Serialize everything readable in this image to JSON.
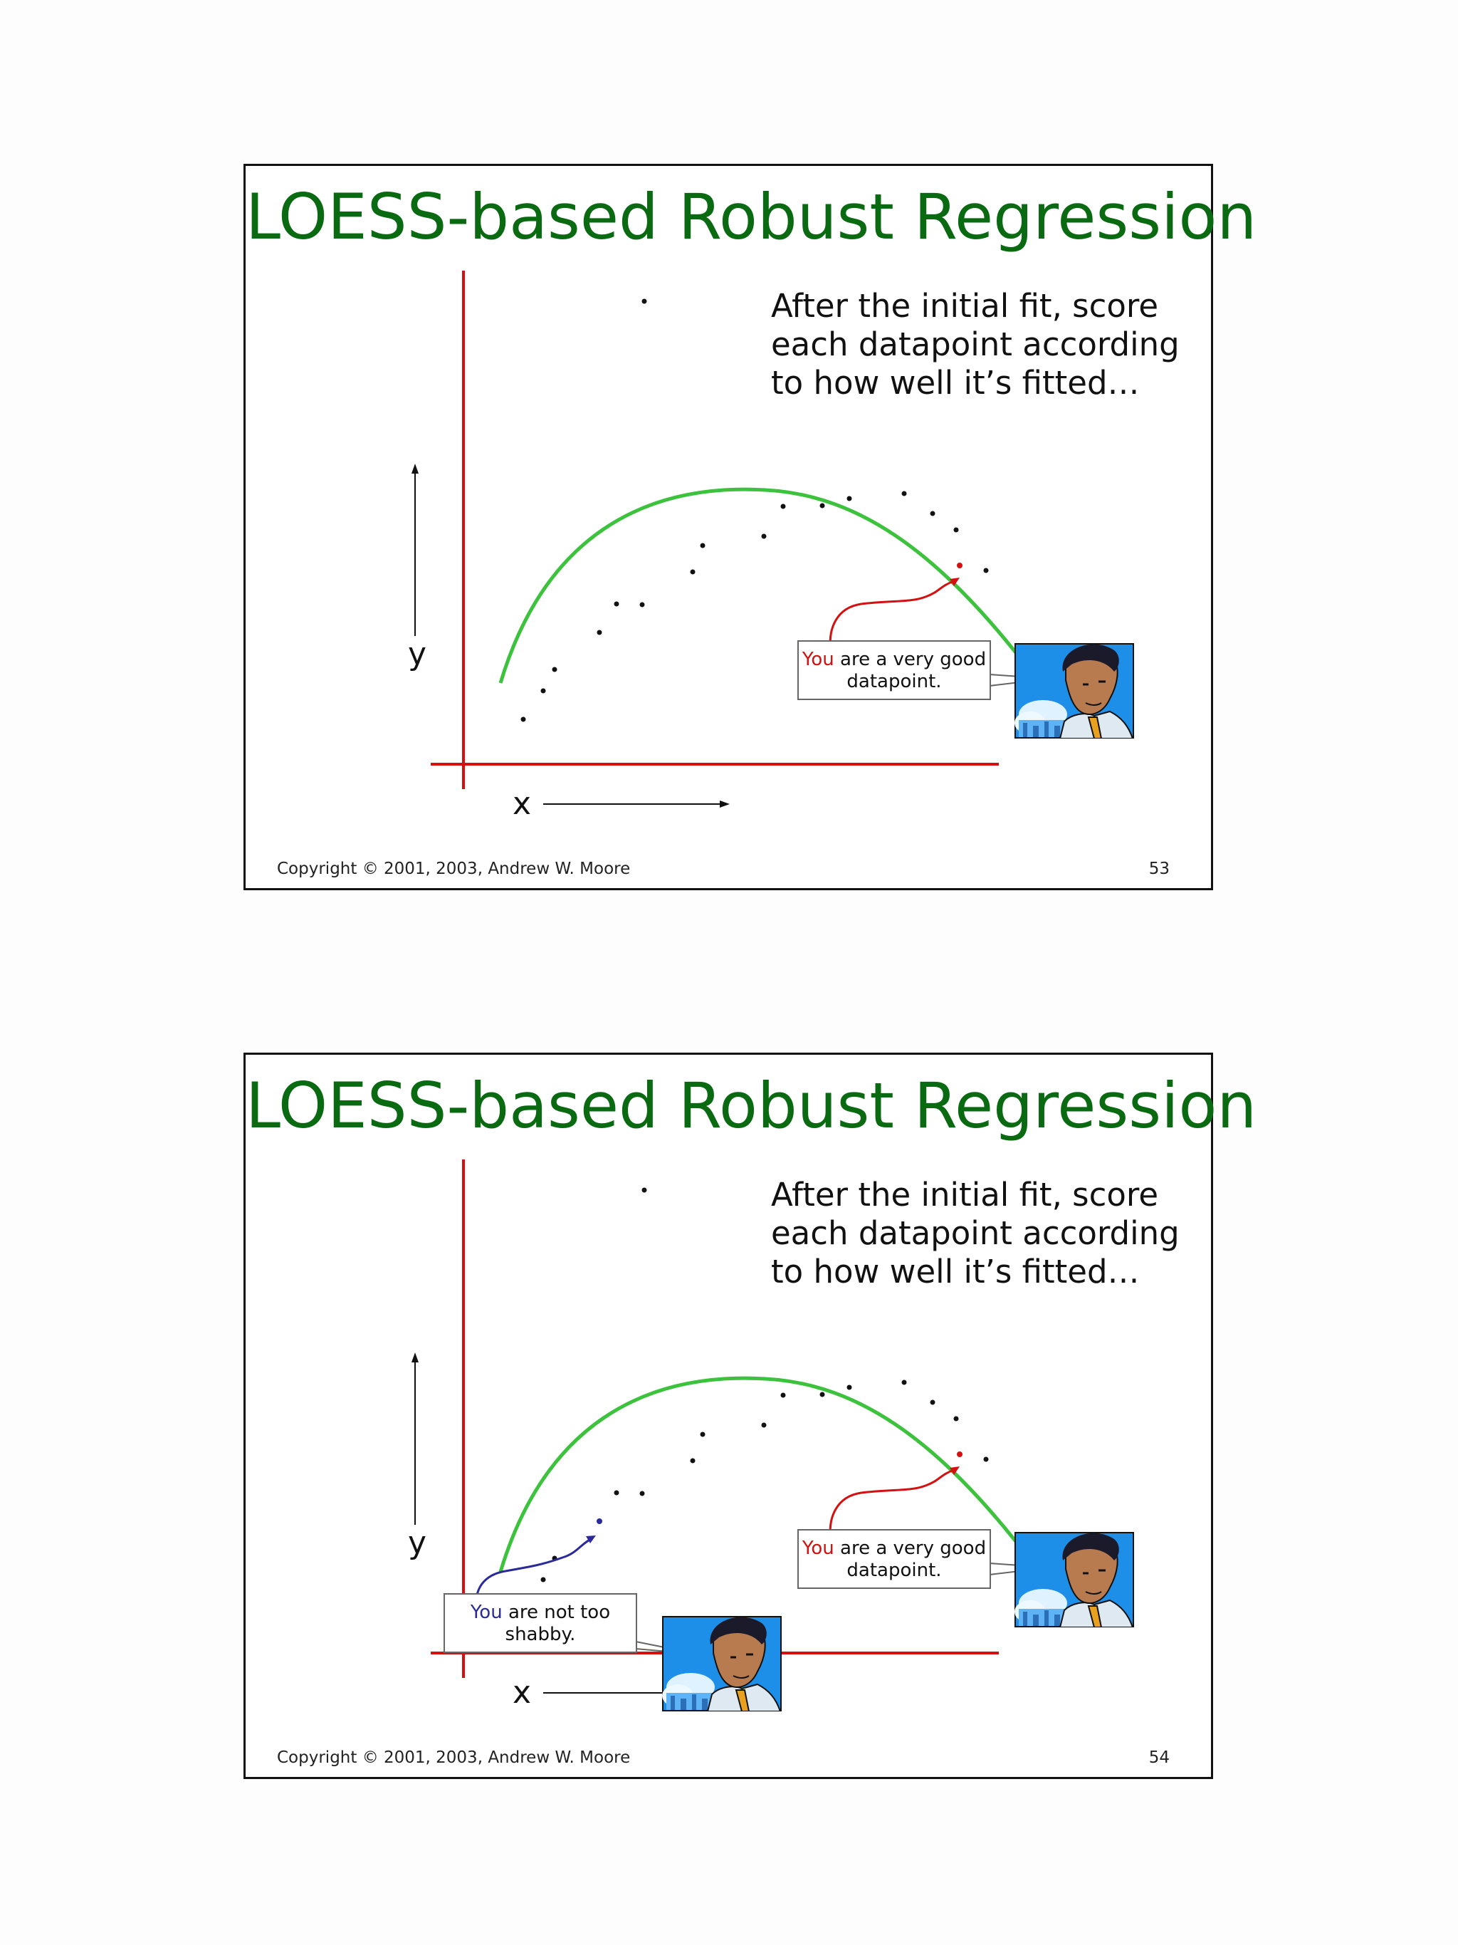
{
  "slides": [
    {
      "title": "LOESS-based Robust Regression",
      "caption": "After the initial fit, score each datapoint according to how well it’s fitted…",
      "axis_y": "y",
      "axis_x": "x",
      "callouts": [
        {
          "you": "You",
          "rest": " are a very good datapoint.",
          "you_color": "#d41010"
        }
      ],
      "footer_left": "Copyright © 2001, 2003, Andrew W. Moore",
      "page_number": "53"
    },
    {
      "title": "LOESS-based Robust Regression",
      "caption": "After the initial fit, score each datapoint according to how well it’s fitted…",
      "axis_y": "y",
      "axis_x": "x",
      "callouts": [
        {
          "you": "You",
          "rest": " are a very good datapoint.",
          "you_color": "#d41010"
        },
        {
          "you": "You",
          "rest": " are not too shabby.",
          "you_color": "#2a2a9a"
        }
      ],
      "footer_left": "Copyright © 2001, 2003, Andrew W. Moore",
      "page_number": "54"
    }
  ],
  "colors": {
    "title": "#0a6a12",
    "axes": "#d41010",
    "fit_curve": "#3cc23c",
    "highlight_red": "#d41010",
    "highlight_blue": "#2a2a9a"
  },
  "icons": [
    "businessman-clipart-icon",
    "arrow-icon"
  ]
}
